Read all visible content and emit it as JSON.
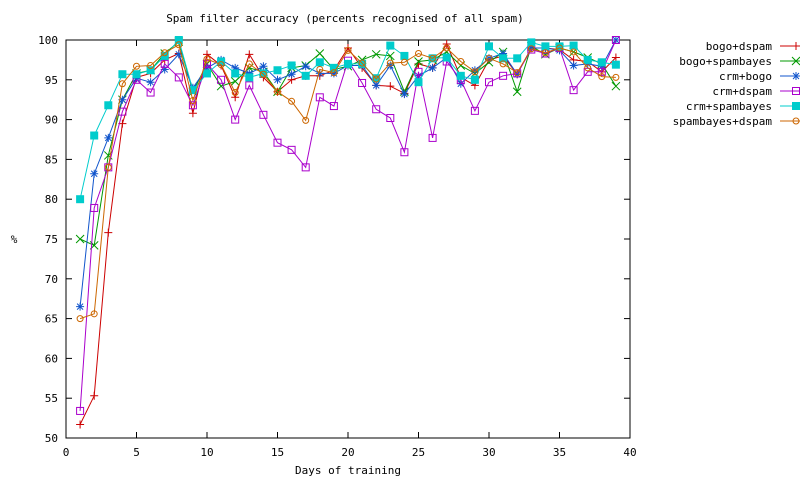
{
  "chart_data": {
    "type": "line",
    "title": "Spam filter accuracy (percents recognised of all spam)",
    "xlabel": "Days of training",
    "ylabel": "%",
    "xlim": [
      0,
      40
    ],
    "ylim": [
      50,
      100
    ],
    "xticks": [
      0,
      5,
      10,
      15,
      20,
      25,
      30,
      35,
      40
    ],
    "yticks": [
      50,
      55,
      60,
      65,
      70,
      75,
      80,
      85,
      90,
      95,
      100
    ],
    "legend_position": "outside-top-right",
    "grid": false,
    "series": [
      {
        "name": "bogo+dspam",
        "color": "#cc0000",
        "marker": "plus",
        "x": [
          1,
          2,
          3,
          4,
          5,
          6,
          7,
          8,
          9,
          10,
          11,
          12,
          13,
          14,
          15,
          16,
          17,
          18,
          19,
          20,
          21,
          22,
          23,
          24,
          25,
          26,
          27,
          28,
          29,
          30,
          31,
          32,
          33,
          34,
          35,
          36,
          37,
          38,
          39
        ],
        "values": [
          51.7,
          55.3,
          75.8,
          89.5,
          95.3,
          95.8,
          97.5,
          98.3,
          90.8,
          98.2,
          96.8,
          92.8,
          98.2,
          95.3,
          93.5,
          95.0,
          95.5,
          95.5,
          96.2,
          99.0,
          96.5,
          94.3,
          94.2,
          93.3,
          97.0,
          96.5,
          99.5,
          95.3,
          94.3,
          97.5,
          98.0,
          95.7,
          99.0,
          99.0,
          98.8,
          97.5,
          97.3,
          96.0,
          97.8
        ]
      },
      {
        "name": "bogo+spambayes",
        "color": "#009900",
        "marker": "cross",
        "x": [
          1,
          2,
          3,
          4,
          5,
          6,
          7,
          8,
          9,
          10,
          11,
          12,
          13,
          14,
          15,
          16,
          17,
          18,
          19,
          20,
          21,
          22,
          23,
          24,
          25,
          26,
          27,
          28,
          29,
          30,
          31,
          32,
          33,
          34,
          35,
          36,
          37,
          38,
          39
        ],
        "values": [
          75.0,
          74.2,
          85.5,
          92.5,
          95.8,
          96.2,
          98.3,
          99.8,
          93.5,
          97.0,
          94.2,
          94.8,
          96.5,
          96.0,
          93.5,
          96.5,
          96.8,
          98.3,
          96.3,
          96.7,
          97.5,
          98.2,
          98.0,
          93.5,
          97.3,
          97.5,
          98.5,
          96.8,
          95.8,
          97.2,
          98.5,
          93.5,
          99.2,
          98.2,
          99.0,
          98.5,
          97.8,
          97.0,
          94.2
        ]
      },
      {
        "name": "crm+bogo",
        "color": "#1155cc",
        "marker": "star",
        "x": [
          1,
          2,
          3,
          4,
          5,
          6,
          7,
          8,
          9,
          10,
          11,
          12,
          13,
          14,
          15,
          16,
          17,
          18,
          19,
          20,
          21,
          22,
          23,
          24,
          25,
          26,
          27,
          28,
          29,
          30,
          31,
          32,
          33,
          34,
          35,
          36,
          37,
          38,
          39
        ],
        "values": [
          66.5,
          83.2,
          87.7,
          92.5,
          95.2,
          94.7,
          96.3,
          98.2,
          94.0,
          96.5,
          97.5,
          96.5,
          95.8,
          96.7,
          95.0,
          95.7,
          96.7,
          95.8,
          95.8,
          96.8,
          96.8,
          94.3,
          96.8,
          93.2,
          95.5,
          96.5,
          97.8,
          94.5,
          96.2,
          97.7,
          98.3,
          95.7,
          99.0,
          99.0,
          98.7,
          96.8,
          97.0,
          96.7,
          100.0
        ]
      },
      {
        "name": "crm+dspam",
        "color": "#aa00cc",
        "marker": "square",
        "x": [
          1,
          2,
          3,
          4,
          5,
          6,
          7,
          8,
          9,
          10,
          11,
          12,
          13,
          14,
          15,
          16,
          17,
          18,
          19,
          20,
          21,
          22,
          23,
          24,
          25,
          26,
          27,
          28,
          29,
          30,
          31,
          32,
          33,
          34,
          35,
          36,
          37,
          38,
          39
        ],
        "values": [
          53.4,
          78.9,
          84.0,
          91.0,
          95.0,
          93.4,
          97.0,
          95.3,
          91.8,
          97.0,
          95.0,
          90.0,
          94.3,
          90.6,
          87.1,
          86.2,
          84.0,
          92.8,
          91.7,
          97.4,
          94.6,
          91.3,
          90.2,
          85.9,
          96.0,
          87.7,
          97.3,
          95.0,
          91.1,
          94.7,
          95.5,
          95.8,
          98.8,
          98.3,
          99.0,
          93.7,
          96.0,
          96.0,
          100.0
        ]
      },
      {
        "name": "crm+spambayes",
        "color": "#00cccc",
        "marker": "filled-square",
        "x": [
          1,
          2,
          3,
          4,
          5,
          6,
          7,
          8,
          9,
          10,
          11,
          12,
          13,
          14,
          15,
          16,
          17,
          18,
          19,
          20,
          21,
          22,
          23,
          24,
          25,
          26,
          27,
          28,
          29,
          30,
          31,
          32,
          33,
          34,
          35,
          36,
          37,
          38,
          39
        ],
        "values": [
          80.0,
          88.0,
          91.8,
          95.7,
          95.7,
          96.2,
          98.0,
          100.0,
          93.7,
          95.8,
          97.3,
          95.8,
          95.3,
          95.8,
          96.2,
          96.8,
          95.5,
          97.2,
          96.5,
          97.0,
          97.0,
          95.2,
          99.3,
          98.0,
          94.7,
          97.7,
          97.8,
          95.5,
          95.0,
          99.2,
          97.7,
          97.7,
          99.7,
          99.2,
          99.2,
          99.3,
          97.5,
          97.2,
          96.9
        ]
      },
      {
        "name": "spambayes+dspam",
        "color": "#cc6600",
        "marker": "circle",
        "x": [
          1,
          2,
          3,
          4,
          5,
          6,
          7,
          8,
          9,
          10,
          11,
          12,
          13,
          14,
          15,
          16,
          17,
          18,
          19,
          20,
          21,
          22,
          23,
          24,
          25,
          26,
          27,
          28,
          29,
          30,
          31,
          32,
          33,
          34,
          35,
          36,
          37,
          38,
          39
        ],
        "values": [
          65.0,
          65.6,
          84.0,
          94.5,
          96.7,
          96.8,
          98.4,
          99.4,
          92.4,
          97.6,
          96.9,
          93.4,
          97.0,
          95.7,
          93.5,
          92.3,
          89.9,
          96.3,
          95.9,
          98.7,
          97.1,
          95.1,
          97.1,
          97.2,
          98.3,
          97.7,
          99.0,
          97.3,
          96.0,
          97.7,
          97.0,
          95.9,
          98.9,
          98.4,
          99.0,
          98.5,
          96.5,
          95.4,
          95.3
        ]
      }
    ]
  }
}
